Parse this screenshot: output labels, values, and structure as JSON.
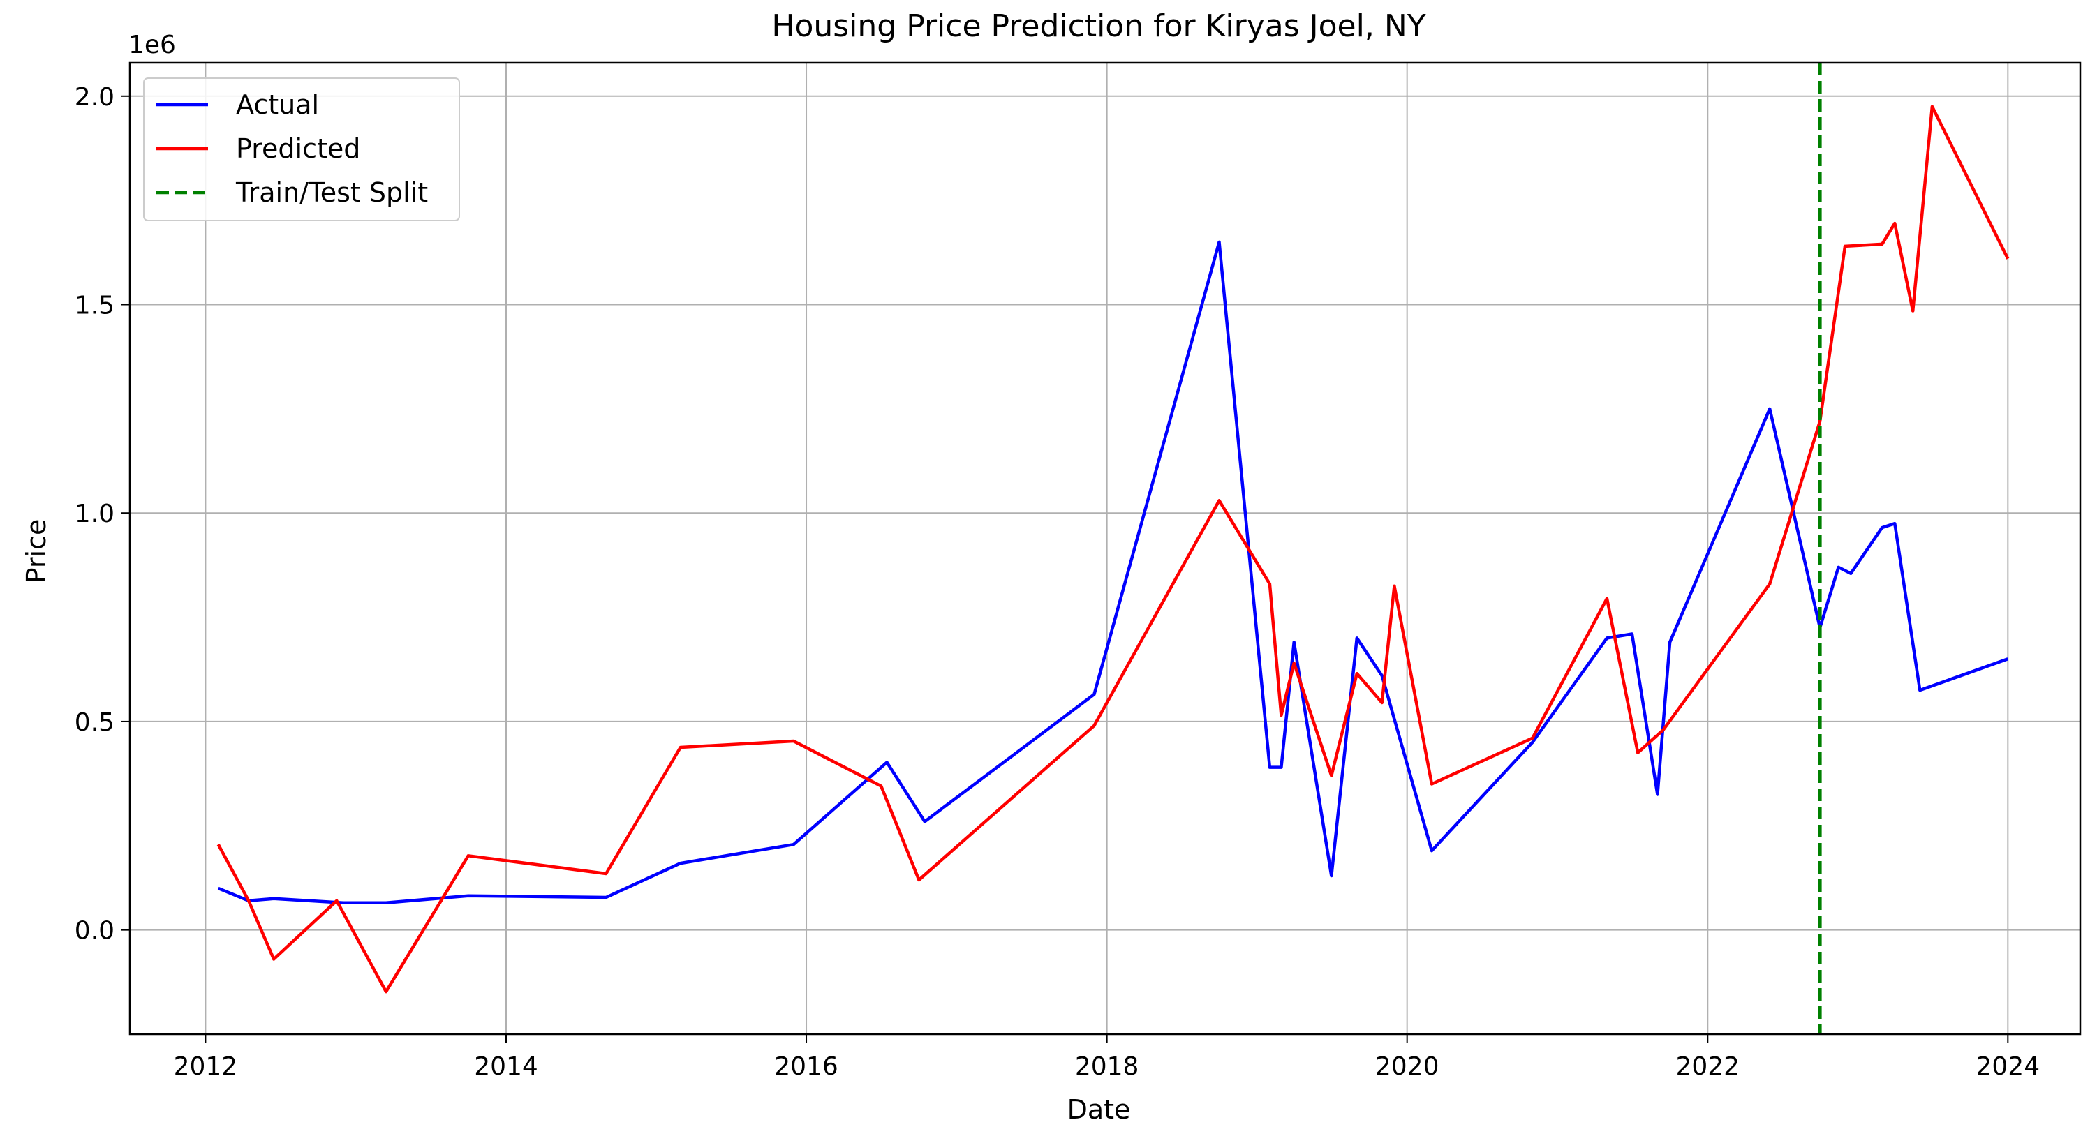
{
  "chart_data": {
    "type": "line",
    "title": "Housing Price Prediction for Kiryas Joel, NY",
    "xlabel": "Date",
    "ylabel": "Price",
    "y_offset_label": "1e6",
    "xlim": [
      "2011-07-01",
      "2024-06-25"
    ],
    "ylim": [
      -0.25,
      2.08
    ],
    "x_ticks": [
      "2012",
      "2014",
      "2016",
      "2018",
      "2020",
      "2022",
      "2024"
    ],
    "y_ticks": [
      "0.0",
      "0.5",
      "1.0",
      "1.5",
      "2.0"
    ],
    "grid": true,
    "legend_position": "top-left",
    "split": {
      "name": "Train/Test Split",
      "x": "2022-10-01",
      "color": "#008000",
      "style": "dashed"
    },
    "series": [
      {
        "name": "Actual",
        "color": "#0000ff",
        "points": [
          [
            "2012-02-01",
            0.1
          ],
          [
            "2012-04-15",
            0.07
          ],
          [
            "2012-06-15",
            0.075
          ],
          [
            "2012-12-01",
            0.065
          ],
          [
            "2013-03-15",
            0.065
          ],
          [
            "2013-10-01",
            0.082
          ],
          [
            "2014-09-01",
            0.078
          ],
          [
            "2015-03-01",
            0.16
          ],
          [
            "2015-12-01",
            0.205
          ],
          [
            "2016-07-15",
            0.402
          ],
          [
            "2016-10-15",
            0.26
          ],
          [
            "2017-12-01",
            0.565
          ],
          [
            "2018-10-01",
            1.65
          ],
          [
            "2019-02-01",
            0.39
          ],
          [
            "2019-03-01",
            0.39
          ],
          [
            "2019-04-01",
            0.69
          ],
          [
            "2019-07-01",
            0.13
          ],
          [
            "2019-09-01",
            0.7
          ],
          [
            "2019-11-01",
            0.61
          ],
          [
            "2020-03-01",
            0.19
          ],
          [
            "2020-11-01",
            0.45
          ],
          [
            "2021-05-01",
            0.7
          ],
          [
            "2021-07-01",
            0.71
          ],
          [
            "2021-09-01",
            0.325
          ],
          [
            "2021-10-01",
            0.69
          ],
          [
            "2022-06-01",
            1.25
          ],
          [
            "2022-10-01",
            0.725
          ],
          [
            "2022-11-15",
            0.87
          ],
          [
            "2022-12-15",
            0.855
          ],
          [
            "2023-03-01",
            0.965
          ],
          [
            "2023-04-01",
            0.975
          ],
          [
            "2023-06-01",
            0.575
          ],
          [
            "2024-01-01",
            0.65
          ]
        ]
      },
      {
        "name": "Predicted",
        "color": "#ff0000",
        "points": [
          [
            "2012-02-01",
            0.205
          ],
          [
            "2012-04-15",
            0.07
          ],
          [
            "2012-06-15",
            -0.07
          ],
          [
            "2012-11-15",
            0.07
          ],
          [
            "2013-03-15",
            -0.148
          ],
          [
            "2013-10-01",
            0.178
          ],
          [
            "2014-09-01",
            0.135
          ],
          [
            "2015-03-01",
            0.438
          ],
          [
            "2015-12-01",
            0.453
          ],
          [
            "2016-07-01",
            0.345
          ],
          [
            "2016-10-01",
            0.12
          ],
          [
            "2017-12-01",
            0.49
          ],
          [
            "2018-10-01",
            1.03
          ],
          [
            "2019-02-01",
            0.83
          ],
          [
            "2019-03-01",
            0.515
          ],
          [
            "2019-04-01",
            0.64
          ],
          [
            "2019-07-01",
            0.37
          ],
          [
            "2019-09-01",
            0.615
          ],
          [
            "2019-11-01",
            0.545
          ],
          [
            "2019-12-01",
            0.825
          ],
          [
            "2020-03-01",
            0.35
          ],
          [
            "2020-11-01",
            0.46
          ],
          [
            "2021-05-01",
            0.795
          ],
          [
            "2021-07-15",
            0.425
          ],
          [
            "2021-09-15",
            0.48
          ],
          [
            "2022-06-01",
            0.83
          ],
          [
            "2022-10-01",
            1.22
          ],
          [
            "2022-12-01",
            1.64
          ],
          [
            "2023-03-01",
            1.645
          ],
          [
            "2023-04-01",
            1.695
          ],
          [
            "2023-05-15",
            1.485
          ],
          [
            "2023-07-01",
            1.975
          ],
          [
            "2024-01-01",
            1.61
          ]
        ]
      }
    ]
  }
}
